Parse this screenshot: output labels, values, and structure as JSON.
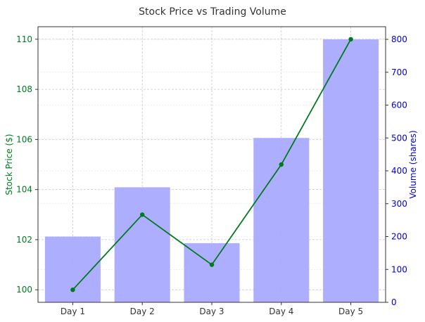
{
  "chart_data": {
    "type": "bar+line",
    "title": "Stock Price vs Trading Volume",
    "categories": [
      "Day 1",
      "Day 2",
      "Day 3",
      "Day 4",
      "Day 5"
    ],
    "bar_series": {
      "values": [
        200,
        350,
        180,
        500,
        800
      ],
      "axis": "right",
      "color": "#aaaaff"
    },
    "line_series": {
      "values": [
        100,
        103,
        101,
        105,
        110
      ],
      "axis": "left",
      "color": "#007a1f",
      "marker": "circle"
    },
    "ylabel_left": "Stock Price ($)",
    "ylabel_right": "Volume (shares)",
    "ylim_left": [
      99.5,
      110.5
    ],
    "ylim_right": [
      0,
      800
    ],
    "yticks_left": [
      100,
      102,
      104,
      106,
      108,
      110
    ],
    "yticks_right": [
      0,
      100,
      200,
      300,
      400,
      500,
      600,
      700,
      800
    ],
    "left_axis_color": "#007a1f",
    "right_axis_color": "#0000cc",
    "grid": true
  }
}
